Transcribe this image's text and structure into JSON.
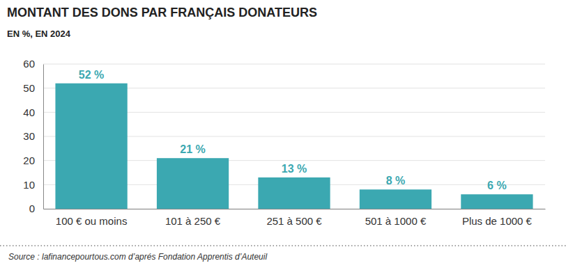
{
  "chart_data": {
    "type": "bar",
    "title": "MONTANT DES DONS PAR FRANÇAIS DONATEURS",
    "subtitle": "EN %, EN 2024",
    "source": "Source : lafinancepourtous.com d’aprés Fondation Apprentis d’Auteuil",
    "categories": [
      "100 € ou moins",
      "101 à 250 €",
      "251 à 500 €",
      "501 à 1000 €",
      "Plus de 1000 €"
    ],
    "values": [
      52,
      21,
      13,
      8,
      6
    ],
    "value_labels": [
      "52 %",
      "21 %",
      "13 %",
      "8 %",
      "6 %"
    ],
    "color": "#3ba8b1",
    "ylim": [
      0,
      60
    ],
    "yticks": [
      0,
      10,
      20,
      30,
      40,
      50,
      60
    ],
    "grid": true,
    "data_labels": true
  }
}
